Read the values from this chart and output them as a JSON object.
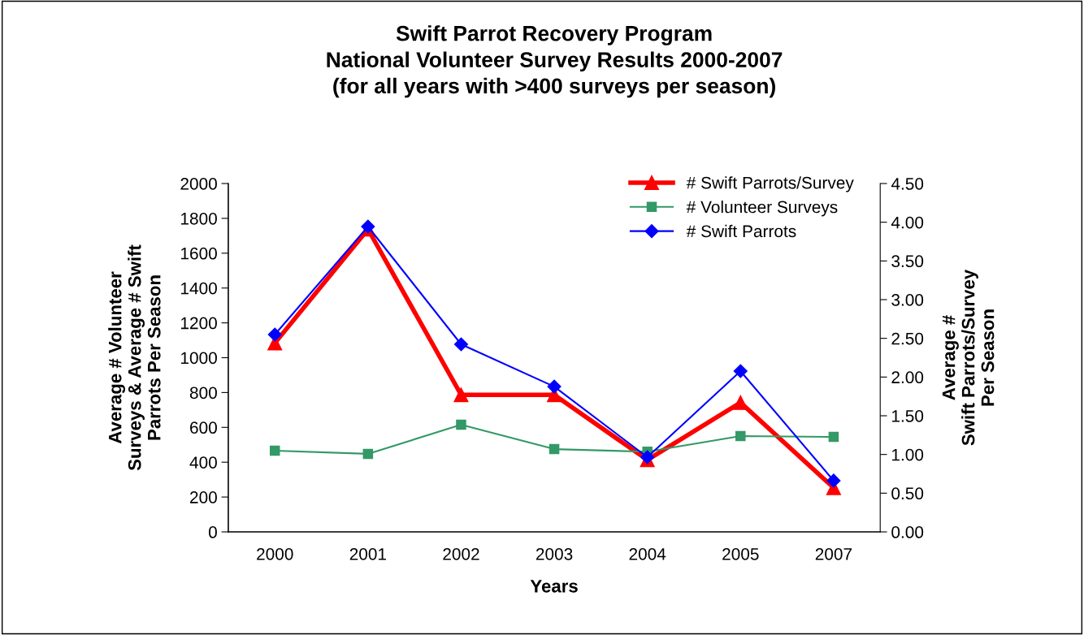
{
  "chart_data": {
    "type": "line",
    "title": "Swift Parrot Recovery Program\nNational Volunteer Survey Results 2000-2007\n(for all years with >400 surveys per season)",
    "xlabel": "Years",
    "ylabel": "Average # Volunteer\nSurveys & Average # Swift\nParrots Per Season",
    "y2label": "Average #\nSwift Parrots/Survey\nPer Season",
    "categories": [
      "2000",
      "2001",
      "2002",
      "2003",
      "2004",
      "2005",
      "2007"
    ],
    "series": [
      {
        "name": "# Swift Parrots/Survey",
        "color": "#ff0000",
        "axis": "y2",
        "marker": "triangle",
        "values": [
          2.44,
          3.91,
          1.77,
          1.77,
          0.93,
          1.67,
          0.57
        ]
      },
      {
        "name": "# Volunteer Surveys",
        "color": "#339966",
        "marker": "square",
        "values": [
          466,
          448,
          615,
          475,
          460,
          550,
          545
        ]
      },
      {
        "name": "# Swift Parrots",
        "color": "#0000ff",
        "marker": "diamond",
        "values": [
          1133,
          1753,
          1077,
          834,
          429,
          923,
          294
        ]
      }
    ],
    "ylim": [
      0,
      2000
    ],
    "yticks": [
      0,
      200,
      400,
      600,
      800,
      1000,
      1200,
      1400,
      1600,
      1800,
      2000
    ],
    "y2lim": [
      0,
      4.5
    ],
    "y2ticks": [
      {
        "value": 0,
        "label": "0.00"
      },
      {
        "value": 0.5,
        "label": "0.50"
      },
      {
        "value": 1,
        "label": "1.00"
      },
      {
        "value": 1.5,
        "label": "1.50"
      },
      {
        "value": 2,
        "label": "2.00"
      },
      {
        "value": 2.5,
        "label": "2.50"
      },
      {
        "value": 3,
        "label": "3.00"
      },
      {
        "value": 3.5,
        "label": "3.50"
      },
      {
        "value": 4,
        "label": "4.00"
      },
      {
        "value": 4.5,
        "label": "4.50"
      }
    ],
    "legend": "top right",
    "grid": false
  }
}
